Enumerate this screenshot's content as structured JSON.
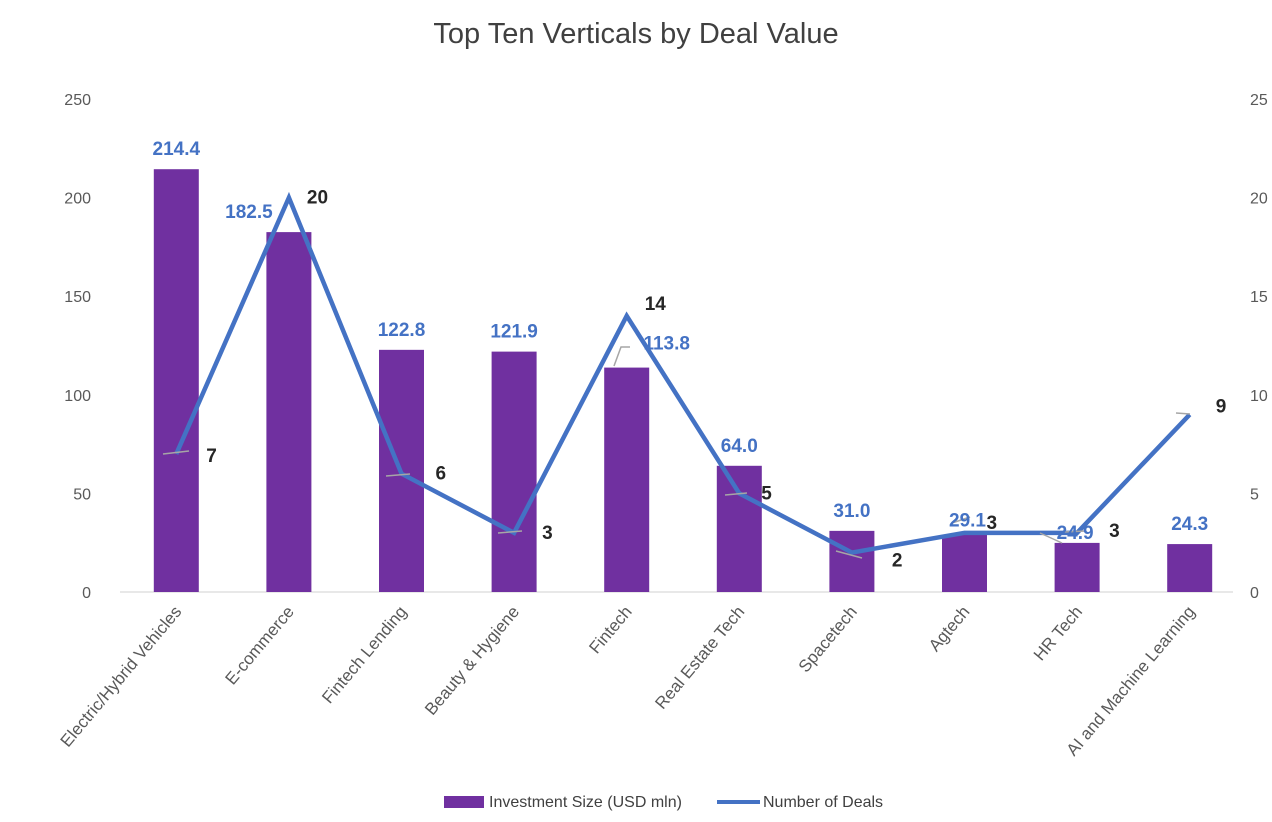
{
  "chart_data": {
    "type": "bar",
    "title": "Top Ten Verticals by Deal Value",
    "categories": [
      "Electric/Hybrid Vehicles",
      "E-commerce",
      "Fintech Lending",
      "Beauty & Hygiene",
      "Fintech",
      "Real Estate Tech",
      "Spacetech",
      "Agtech",
      "HR Tech",
      "AI and Machine Learning"
    ],
    "series": [
      {
        "name": "Investment Size (USD mln)",
        "type": "bar",
        "axis": "left",
        "color": "#7030A0",
        "values": [
          214.4,
          182.5,
          122.8,
          121.9,
          113.8,
          64.0,
          31.0,
          29.1,
          24.9,
          24.3
        ],
        "labels": [
          "214.4",
          "182.5",
          "122.8",
          "121.9",
          "113.8",
          "64.0",
          "31.0",
          "29.1",
          "24.9",
          "24.3"
        ]
      },
      {
        "name": "Number of Deals",
        "type": "line",
        "axis": "right",
        "color": "#4472C4",
        "values": [
          7,
          20,
          6,
          3,
          14,
          5,
          2,
          3,
          3,
          9
        ],
        "labels": [
          "7",
          "20",
          "6",
          "3",
          "14",
          "5",
          "2",
          "3",
          "3",
          "9"
        ]
      }
    ],
    "y_left": {
      "min": 0,
      "max": 250,
      "ticks": [
        "0",
        "50",
        "100",
        "150",
        "200",
        "250"
      ]
    },
    "y_right": {
      "min": 0,
      "max": 25,
      "ticks": [
        "0",
        "5",
        "10",
        "15",
        "20",
        "25"
      ]
    },
    "grid": false,
    "legend_position": "bottom"
  }
}
